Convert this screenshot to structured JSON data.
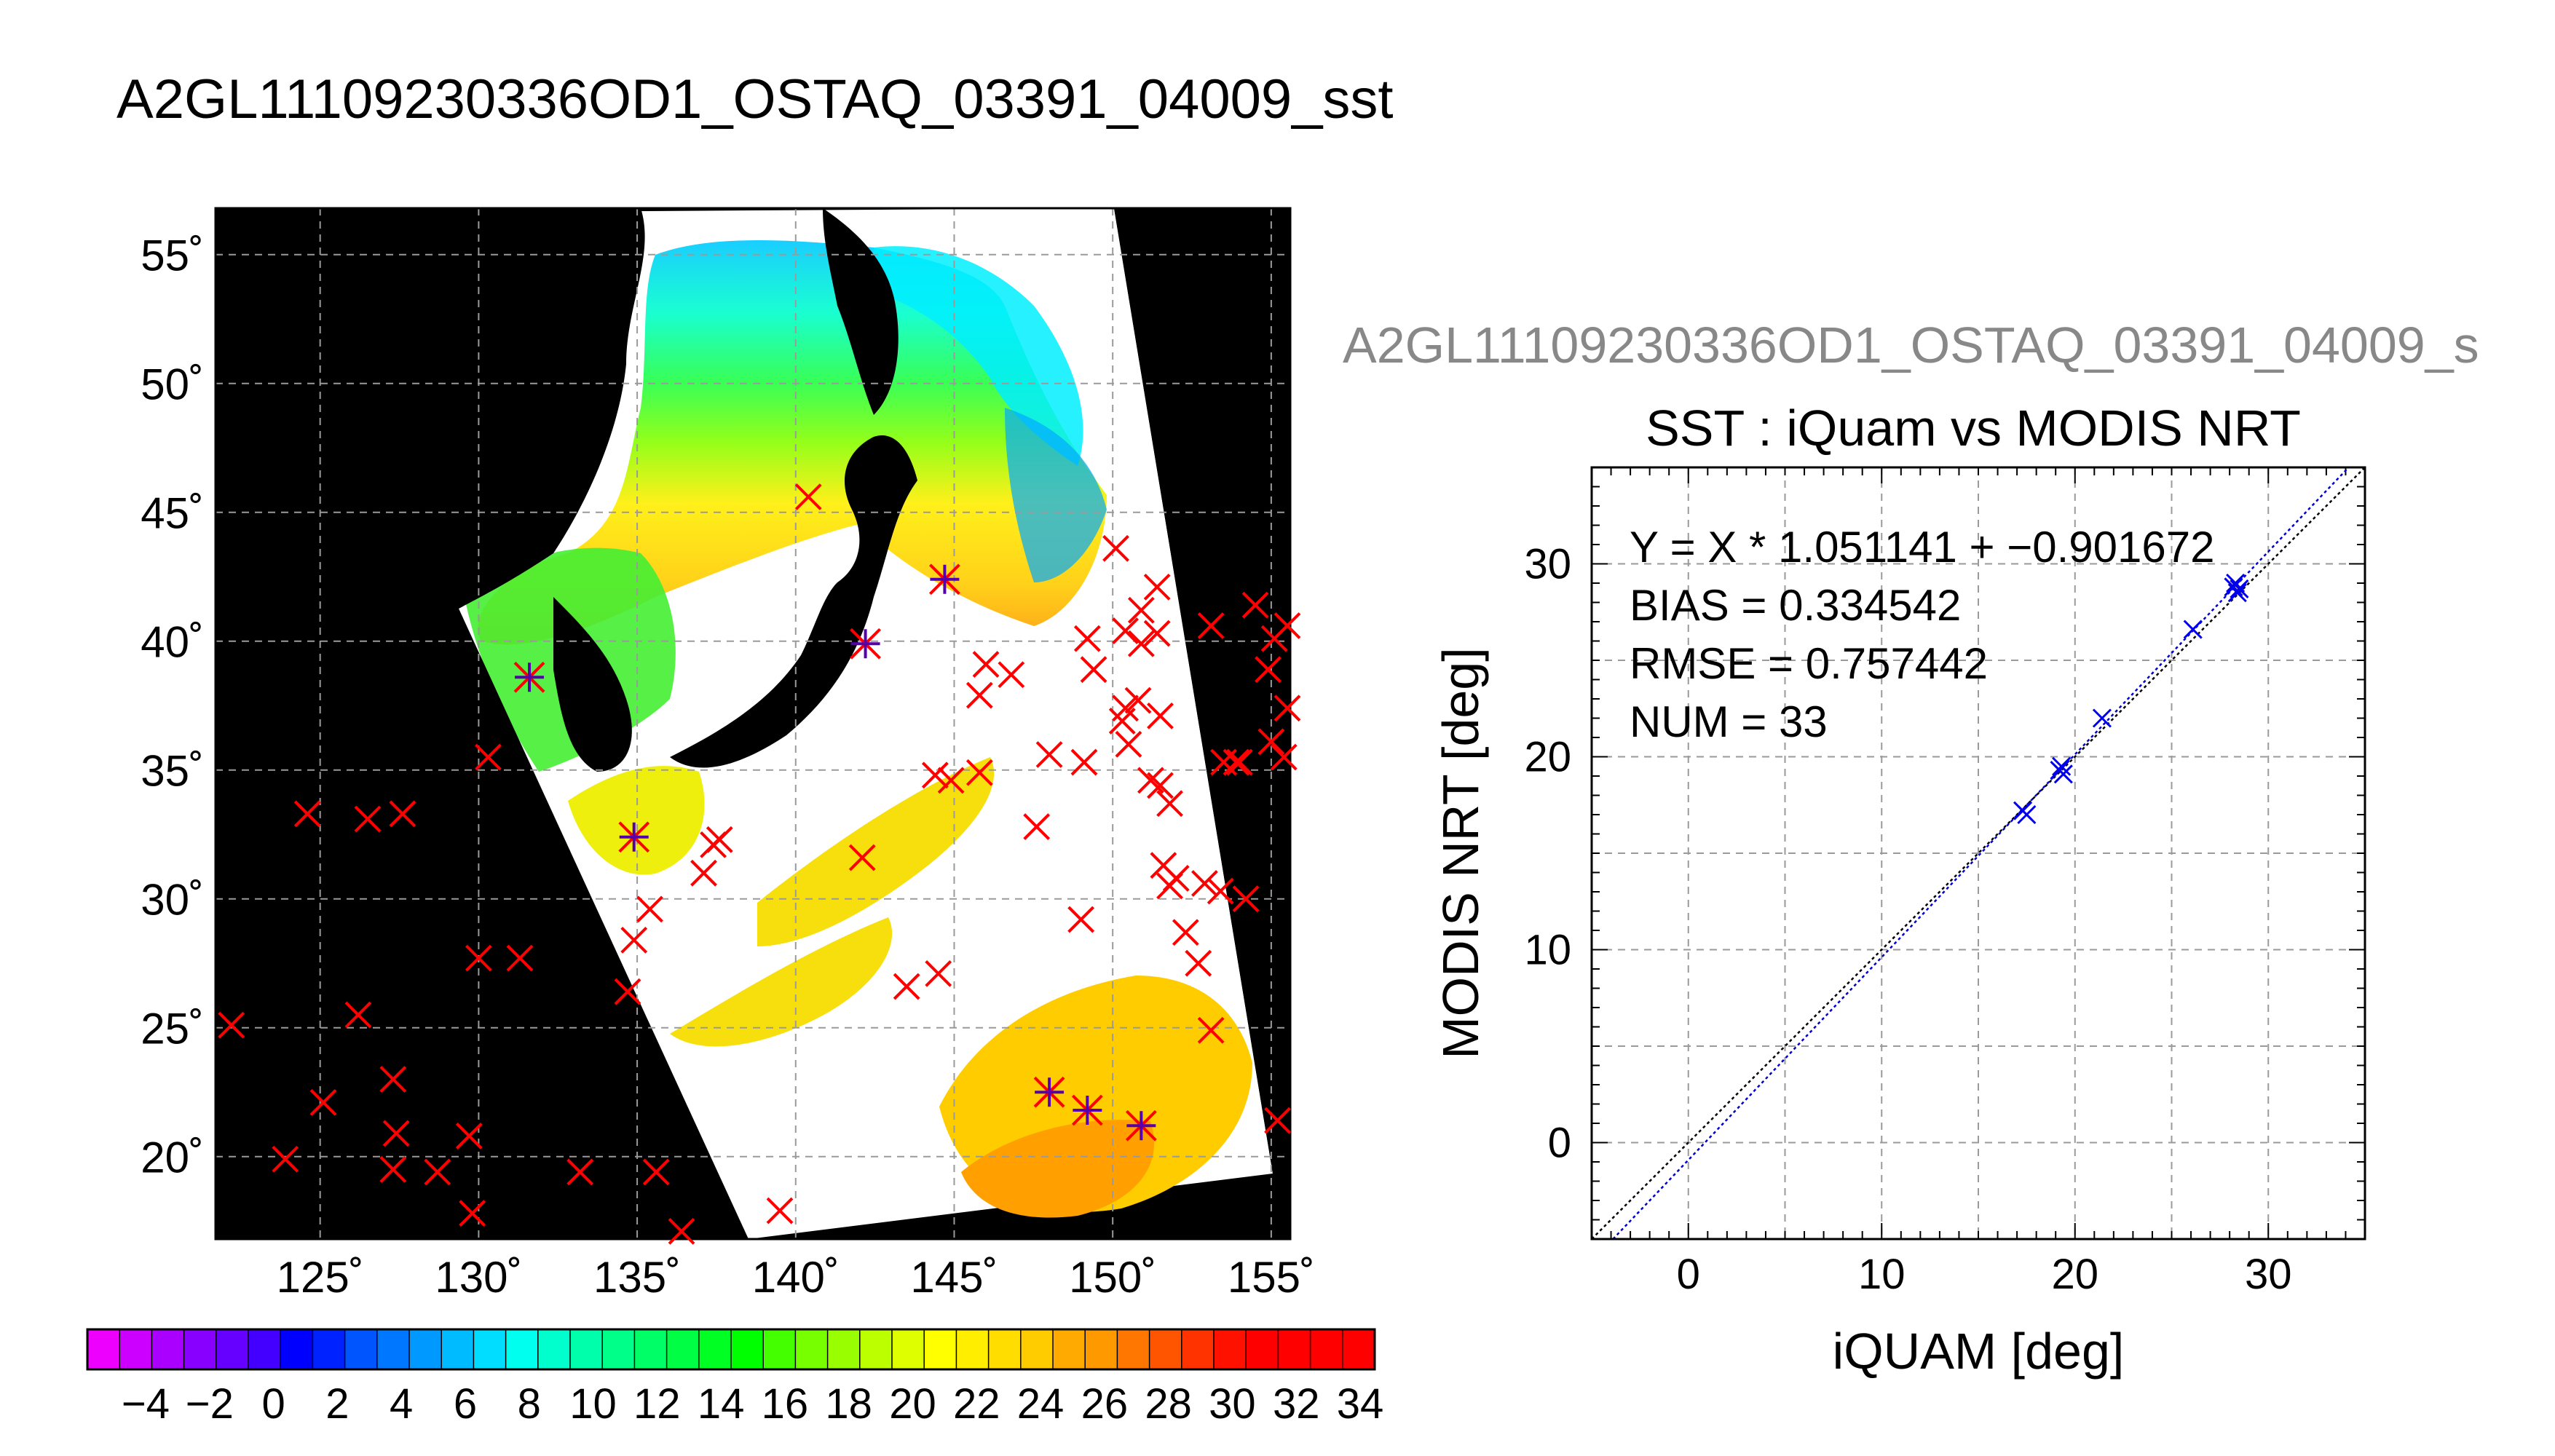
{
  "main_title": "A2GL11109230336OD1_OSTAQ_03391_04009_sst",
  "map": {
    "lat_ticks": [
      "55˚",
      "50˚",
      "45˚",
      "40˚",
      "35˚",
      "30˚",
      "25˚",
      "20˚"
    ],
    "lon_ticks": [
      "125˚",
      "130˚",
      "135˚",
      "140˚",
      "145˚",
      "150˚",
      "155˚"
    ],
    "lon_range": [
      121.7,
      155.6
    ],
    "lat_range": [
      16.8,
      56.8
    ],
    "marker_color": "#ff0000",
    "match_color": "#5500aa",
    "buoys": [
      [
        122.2,
        25.1
      ],
      [
        123.9,
        19.9
      ],
      [
        124.6,
        33.3
      ],
      [
        125.1,
        22.1
      ],
      [
        126.5,
        33.1
      ],
      [
        126.2,
        25.5
      ],
      [
        127.6,
        33.3
      ],
      [
        127.3,
        23.0
      ],
      [
        127.4,
        20.9
      ],
      [
        127.3,
        19.5
      ],
      [
        128.7,
        19.4
      ],
      [
        129.7,
        20.8
      ],
      [
        129.8,
        17.8
      ],
      [
        130.0,
        27.7
      ],
      [
        130.3,
        35.5
      ],
      [
        131.3,
        27.7
      ],
      [
        133.2,
        19.4
      ],
      [
        134.7,
        26.4
      ],
      [
        134.9,
        28.4
      ],
      [
        135.4,
        29.6
      ],
      [
        135.6,
        19.4
      ],
      [
        136.4,
        17.1
      ],
      [
        137.1,
        31.0
      ],
      [
        137.4,
        32.1
      ],
      [
        137.6,
        32.3
      ],
      [
        139.5,
        17.9
      ],
      [
        140.4,
        45.6
      ],
      [
        142.1,
        31.6
      ],
      [
        143.5,
        26.6
      ],
      [
        144.4,
        34.8
      ],
      [
        144.9,
        34.6
      ],
      [
        144.5,
        27.1
      ],
      [
        145.8,
        34.9
      ],
      [
        145.8,
        37.9
      ],
      [
        146.0,
        39.1
      ],
      [
        146.8,
        38.7
      ],
      [
        147.6,
        32.8
      ],
      [
        148.0,
        35.6
      ],
      [
        149.1,
        35.3
      ],
      [
        149.0,
        29.2
      ],
      [
        149.2,
        40.1
      ],
      [
        149.4,
        38.9
      ],
      [
        150.1,
        43.6
      ],
      [
        150.4,
        37.4
      ],
      [
        150.3,
        36.9
      ],
      [
        150.5,
        36.0
      ],
      [
        150.4,
        40.4
      ],
      [
        150.9,
        41.2
      ],
      [
        150.9,
        39.9
      ],
      [
        150.8,
        37.7
      ],
      [
        151.5,
        37.1
      ],
      [
        151.5,
        34.4
      ],
      [
        151.2,
        34.6
      ],
      [
        151.4,
        40.3
      ],
      [
        151.8,
        33.7
      ],
      [
        151.4,
        42.1
      ],
      [
        151.6,
        31.3
      ],
      [
        152.0,
        30.8
      ],
      [
        151.8,
        30.5
      ],
      [
        152.3,
        28.7
      ],
      [
        152.7,
        27.5
      ],
      [
        152.9,
        30.6
      ],
      [
        153.4,
        30.3
      ],
      [
        153.5,
        35.3
      ],
      [
        153.1,
        40.6
      ],
      [
        154.0,
        35.3
      ],
      [
        154.5,
        41.4
      ],
      [
        155.1,
        40.1
      ],
      [
        154.9,
        38.9
      ],
      [
        155.0,
        36.1
      ],
      [
        155.4,
        35.5
      ],
      [
        155.6,
        37.4
      ],
      [
        155.7,
        40.6
      ],
      [
        155.2,
        21.4
      ],
      [
        154.2,
        30.0
      ],
      [
        153.1,
        24.9
      ],
      [
        153.9,
        35.3
      ]
    ],
    "matchups": [
      [
        131.6,
        38.6
      ],
      [
        134.9,
        32.4
      ],
      [
        142.2,
        39.9
      ],
      [
        144.7,
        42.4
      ],
      [
        148.0,
        22.5
      ],
      [
        149.2,
        21.8
      ],
      [
        150.9,
        21.2
      ]
    ]
  },
  "colorbar": {
    "tick_labels": [
      "−4",
      "−2",
      "0",
      "2",
      "4",
      "6",
      "8",
      "10",
      "12",
      "14",
      "16",
      "18",
      "20",
      "22",
      "24",
      "26",
      "28",
      "30",
      "32",
      "34"
    ],
    "colors": [
      "#ee00ff",
      "#cc00ff",
      "#aa00ff",
      "#8800ff",
      "#6600ff",
      "#4400ff",
      "#0000ff",
      "#0022ff",
      "#0055ff",
      "#0077ff",
      "#0099ff",
      "#00bbff",
      "#00ddff",
      "#00ffee",
      "#00ffcc",
      "#00ffaa",
      "#00ff88",
      "#00ff66",
      "#00ff44",
      "#00ff22",
      "#00ff00",
      "#44ff00",
      "#77ff00",
      "#99ff00",
      "#bbff00",
      "#ddff00",
      "#ffff00",
      "#ffee00",
      "#ffdd00",
      "#ffcc00",
      "#ffaa00",
      "#ff9900",
      "#ff7700",
      "#ff5500",
      "#ff3300",
      "#ff1100",
      "#ff0000",
      "#ff0000",
      "#ff0000",
      "#ff0000"
    ]
  },
  "scatter_title_gray": "A2GL11109230336OD1_OSTAQ_03391_04009_s",
  "chart_data": {
    "type": "scatter",
    "title": "SST : iQuam vs MODIS NRT",
    "xlabel": "iQUAM [deg]",
    "ylabel": "MODIS NRT [deg]",
    "xlim": [
      -5,
      35
    ],
    "ylim": [
      -5,
      35
    ],
    "x_ticks": [
      "0",
      "10",
      "20",
      "30"
    ],
    "y_ticks": [
      "0",
      "10",
      "20",
      "30"
    ],
    "grid": true,
    "stats": [
      "Y = X * 1.051141 + −0.901672",
      "BIAS = 0.334542",
      "RMSE = 0.757442",
      "NUM = 33"
    ],
    "fit": {
      "slope": 1.051141,
      "intercept": -0.901672
    },
    "points": [
      {
        "x": 17.3,
        "y": 17.2
      },
      {
        "x": 17.5,
        "y": 17.0
      },
      {
        "x": 19.2,
        "y": 19.3
      },
      {
        "x": 19.4,
        "y": 19.1
      },
      {
        "x": 19.3,
        "y": 19.5
      },
      {
        "x": 21.4,
        "y": 22.0
      },
      {
        "x": 26.1,
        "y": 26.6
      },
      {
        "x": 28.2,
        "y": 28.8
      },
      {
        "x": 28.4,
        "y": 28.5
      },
      {
        "x": 28.3,
        "y": 29.0
      },
      {
        "x": 28.5,
        "y": 28.7
      }
    ],
    "point_color": "#0000ee"
  }
}
